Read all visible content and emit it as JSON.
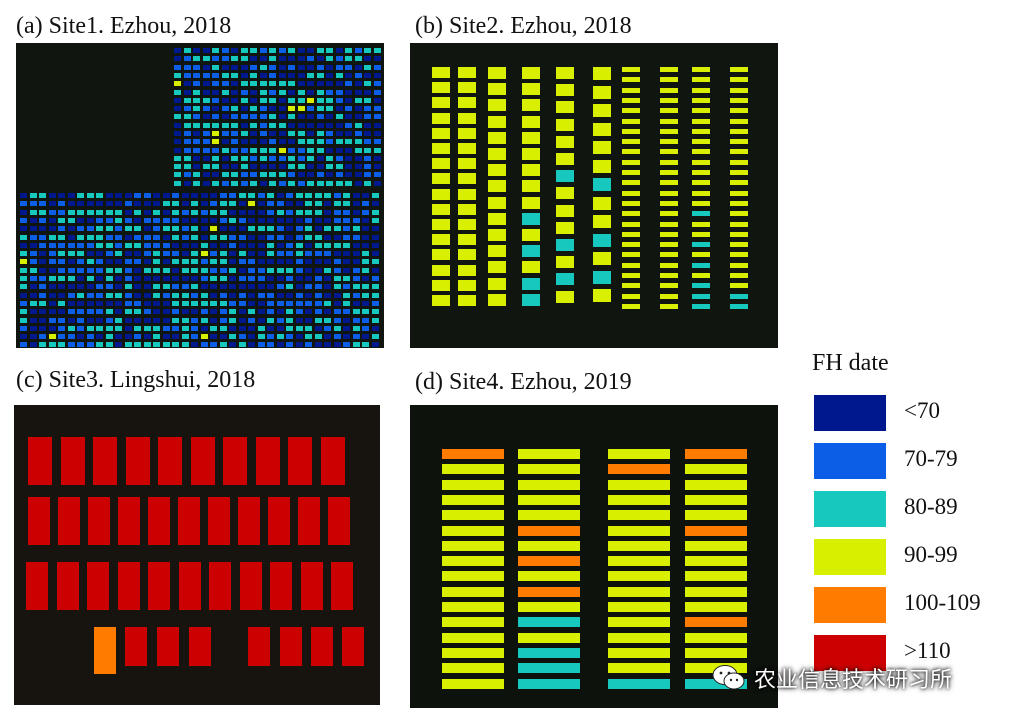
{
  "panels": {
    "a": {
      "title": "(a) Site1. Ezhou, 2018"
    },
    "b": {
      "title": "(b) Site2. Ezhou, 2018"
    },
    "c": {
      "title": "(c) Site3. Lingshui, 2018"
    },
    "d": {
      "title": "(d) Site4. Ezhou, 2019"
    }
  },
  "legend": {
    "title": "FH date",
    "items": [
      {
        "label": "<70",
        "color": "#00188e"
      },
      {
        "label": "70-79",
        "color": "#0c5ee6"
      },
      {
        "label": "80-89",
        "color": "#17c8be"
      },
      {
        "label": "90-99",
        "color": "#d9ef00"
      },
      {
        "label": "100-109",
        "color": "#ff7c00"
      },
      {
        "label": ">110",
        "color": "#cc0000"
      }
    ]
  },
  "watermark": {
    "text": "农业信息技术研习所"
  }
}
